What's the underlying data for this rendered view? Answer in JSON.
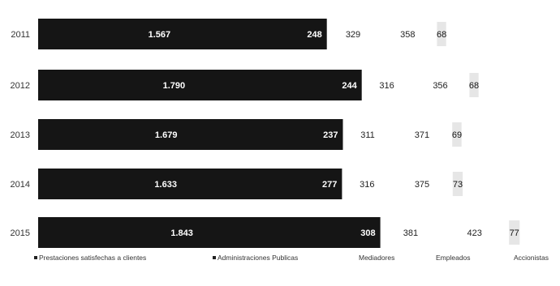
{
  "chart_data": {
    "type": "bar",
    "orientation": "horizontal",
    "stacked": true,
    "categories": [
      "2011",
      "2012",
      "2013",
      "2014",
      "2015"
    ],
    "series": [
      {
        "name": "Prestaciones satisfechas a clientes",
        "values": [
          1567,
          1790,
          1679,
          1633,
          1843
        ],
        "labels": [
          "1.567",
          "1.790",
          "1.679",
          "1.633",
          "1.843"
        ],
        "color": "#151515"
      },
      {
        "name": "Administraciones Publicas",
        "values": [
          248,
          244,
          237,
          277,
          308
        ],
        "labels": [
          "248",
          "244",
          "237",
          "277",
          "308"
        ],
        "color": "#1d1d1d"
      },
      {
        "name": "Mediadores",
        "values": [
          329,
          316,
          311,
          316,
          381
        ],
        "labels": [
          "329",
          "316",
          "311",
          "316",
          "381"
        ],
        "color": "#ffffff"
      },
      {
        "name": "Empleados",
        "values": [
          358,
          356,
          371,
          375,
          423
        ],
        "labels": [
          "358",
          "356",
          "371",
          "375",
          "423"
        ],
        "color": "#ffffff"
      },
      {
        "name": "Accionistas",
        "values": [
          68,
          68,
          69,
          73,
          77
        ],
        "labels": [
          "68",
          "68",
          "69",
          "73",
          "77"
        ],
        "color": "#e6e6e6"
      }
    ],
    "legend_position": "bottom",
    "grid": false
  }
}
